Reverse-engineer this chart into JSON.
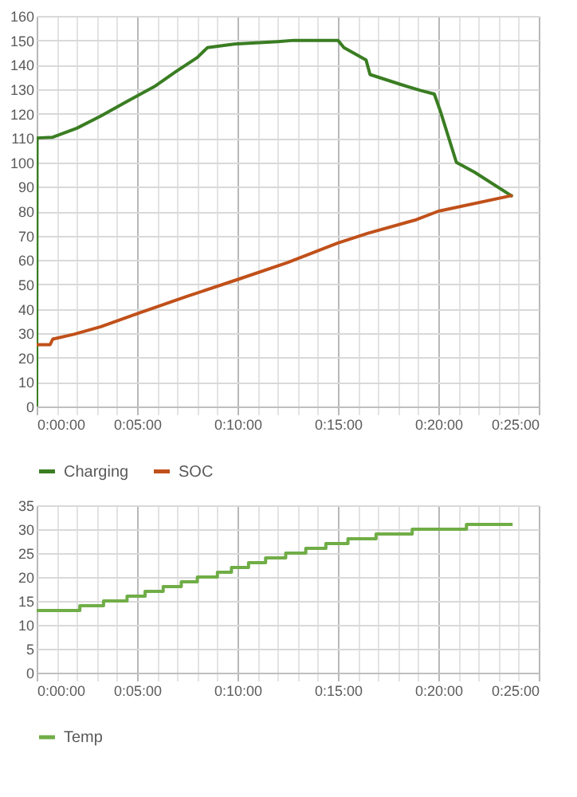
{
  "chart_data": [
    {
      "type": "line",
      "x": [
        0,
        0.02,
        0.8,
        2.0,
        3.2,
        4.5,
        5.85,
        6.9,
        8.0,
        8.5,
        9.85,
        12,
        12.8,
        15,
        15.3,
        16.4,
        16.6,
        18.1,
        19.1,
        19.8,
        20.1,
        20.9,
        21.8,
        23.7
      ],
      "series": [
        {
          "name": "Charging",
          "color": "#3a7d22",
          "values": [
            0,
            110,
            110.3,
            114,
            119,
            125,
            131,
            137,
            143,
            147,
            148.5,
            149.5,
            150,
            150,
            147,
            142,
            136,
            132,
            129.5,
            128,
            121,
            100,
            96,
            86
          ]
        },
        {
          "name": "SOC",
          "color": "#c0501a",
          "x": [
            0,
            0.67,
            0.8,
            1.86,
            3.2,
            5,
            7.45,
            10,
            12.5,
            15,
            16.5,
            18.9,
            20,
            23.7
          ],
          "values": [
            25.3,
            25.3,
            27.6,
            29.6,
            32.7,
            38,
            45,
            52,
            59,
            67,
            71,
            76.5,
            80,
            86.5
          ]
        }
      ],
      "xlim": [
        0,
        25
      ],
      "xticks": [
        {
          "value": 0,
          "label": "0:00:00"
        },
        {
          "value": 1,
          "label": null
        },
        {
          "value": 2,
          "label": null
        },
        {
          "value": 3,
          "label": null
        },
        {
          "value": 4,
          "label": null
        },
        {
          "value": 5,
          "label": "0:05:00"
        },
        {
          "value": 6,
          "label": null
        },
        {
          "value": 7,
          "label": null
        },
        {
          "value": 8,
          "label": null
        },
        {
          "value": 9,
          "label": null
        },
        {
          "value": 10,
          "label": "0:10:00"
        },
        {
          "value": 11,
          "label": null
        },
        {
          "value": 12,
          "label": null
        },
        {
          "value": 13,
          "label": null
        },
        {
          "value": 14,
          "label": null
        },
        {
          "value": 15,
          "label": "0:15:00"
        },
        {
          "value": 16,
          "label": null
        },
        {
          "value": 17,
          "label": null
        },
        {
          "value": 18,
          "label": null
        },
        {
          "value": 19,
          "label": null
        },
        {
          "value": 20,
          "label": "0:20:00"
        },
        {
          "value": 21,
          "label": null
        },
        {
          "value": 22,
          "label": null
        },
        {
          "value": 23,
          "label": null
        },
        {
          "value": 24,
          "label": null
        },
        {
          "value": 25,
          "label": "0:25:00"
        }
      ],
      "ylim": [
        0,
        160
      ],
      "yticks": [
        0,
        10,
        20,
        30,
        40,
        50,
        60,
        70,
        80,
        90,
        100,
        110,
        120,
        130,
        140,
        150,
        160
      ],
      "grid": true,
      "legend": "bottom"
    },
    {
      "type": "step",
      "x": [
        0,
        2.15,
        3.33,
        4.5,
        5.4,
        6.3,
        7.2,
        8.0,
        9.0,
        9.7,
        10.55,
        11.4,
        12.4,
        13.4,
        14.4,
        15.5,
        16.9,
        18.7,
        21.4,
        23.7
      ],
      "series": [
        {
          "name": "Temp",
          "color": "#70ad47",
          "values": [
            13,
            14,
            15,
            16,
            17,
            18,
            19,
            20,
            21,
            22,
            23,
            24,
            25,
            26,
            27,
            28,
            29,
            30,
            31,
            31
          ]
        }
      ],
      "xlim": [
        0,
        25
      ],
      "xticks": [
        {
          "value": 0,
          "label": "0:00:00"
        },
        {
          "value": 1,
          "label": null
        },
        {
          "value": 2,
          "label": null
        },
        {
          "value": 3,
          "label": null
        },
        {
          "value": 4,
          "label": null
        },
        {
          "value": 5,
          "label": "0:05:00"
        },
        {
          "value": 6,
          "label": null
        },
        {
          "value": 7,
          "label": null
        },
        {
          "value": 8,
          "label": null
        },
        {
          "value": 9,
          "label": null
        },
        {
          "value": 10,
          "label": "0:10:00"
        },
        {
          "value": 11,
          "label": null
        },
        {
          "value": 12,
          "label": null
        },
        {
          "value": 13,
          "label": null
        },
        {
          "value": 14,
          "label": null
        },
        {
          "value": 15,
          "label": "0:15:00"
        },
        {
          "value": 16,
          "label": null
        },
        {
          "value": 17,
          "label": null
        },
        {
          "value": 18,
          "label": null
        },
        {
          "value": 19,
          "label": null
        },
        {
          "value": 20,
          "label": "0:20:00"
        },
        {
          "value": 21,
          "label": null
        },
        {
          "value": 22,
          "label": null
        },
        {
          "value": 23,
          "label": null
        },
        {
          "value": 24,
          "label": null
        },
        {
          "value": 25,
          "label": "0:25:00"
        }
      ],
      "ylim": [
        0,
        35
      ],
      "yticks": [
        0,
        5,
        10,
        15,
        20,
        25,
        30,
        35
      ],
      "grid": true,
      "legend": "bottom"
    }
  ]
}
